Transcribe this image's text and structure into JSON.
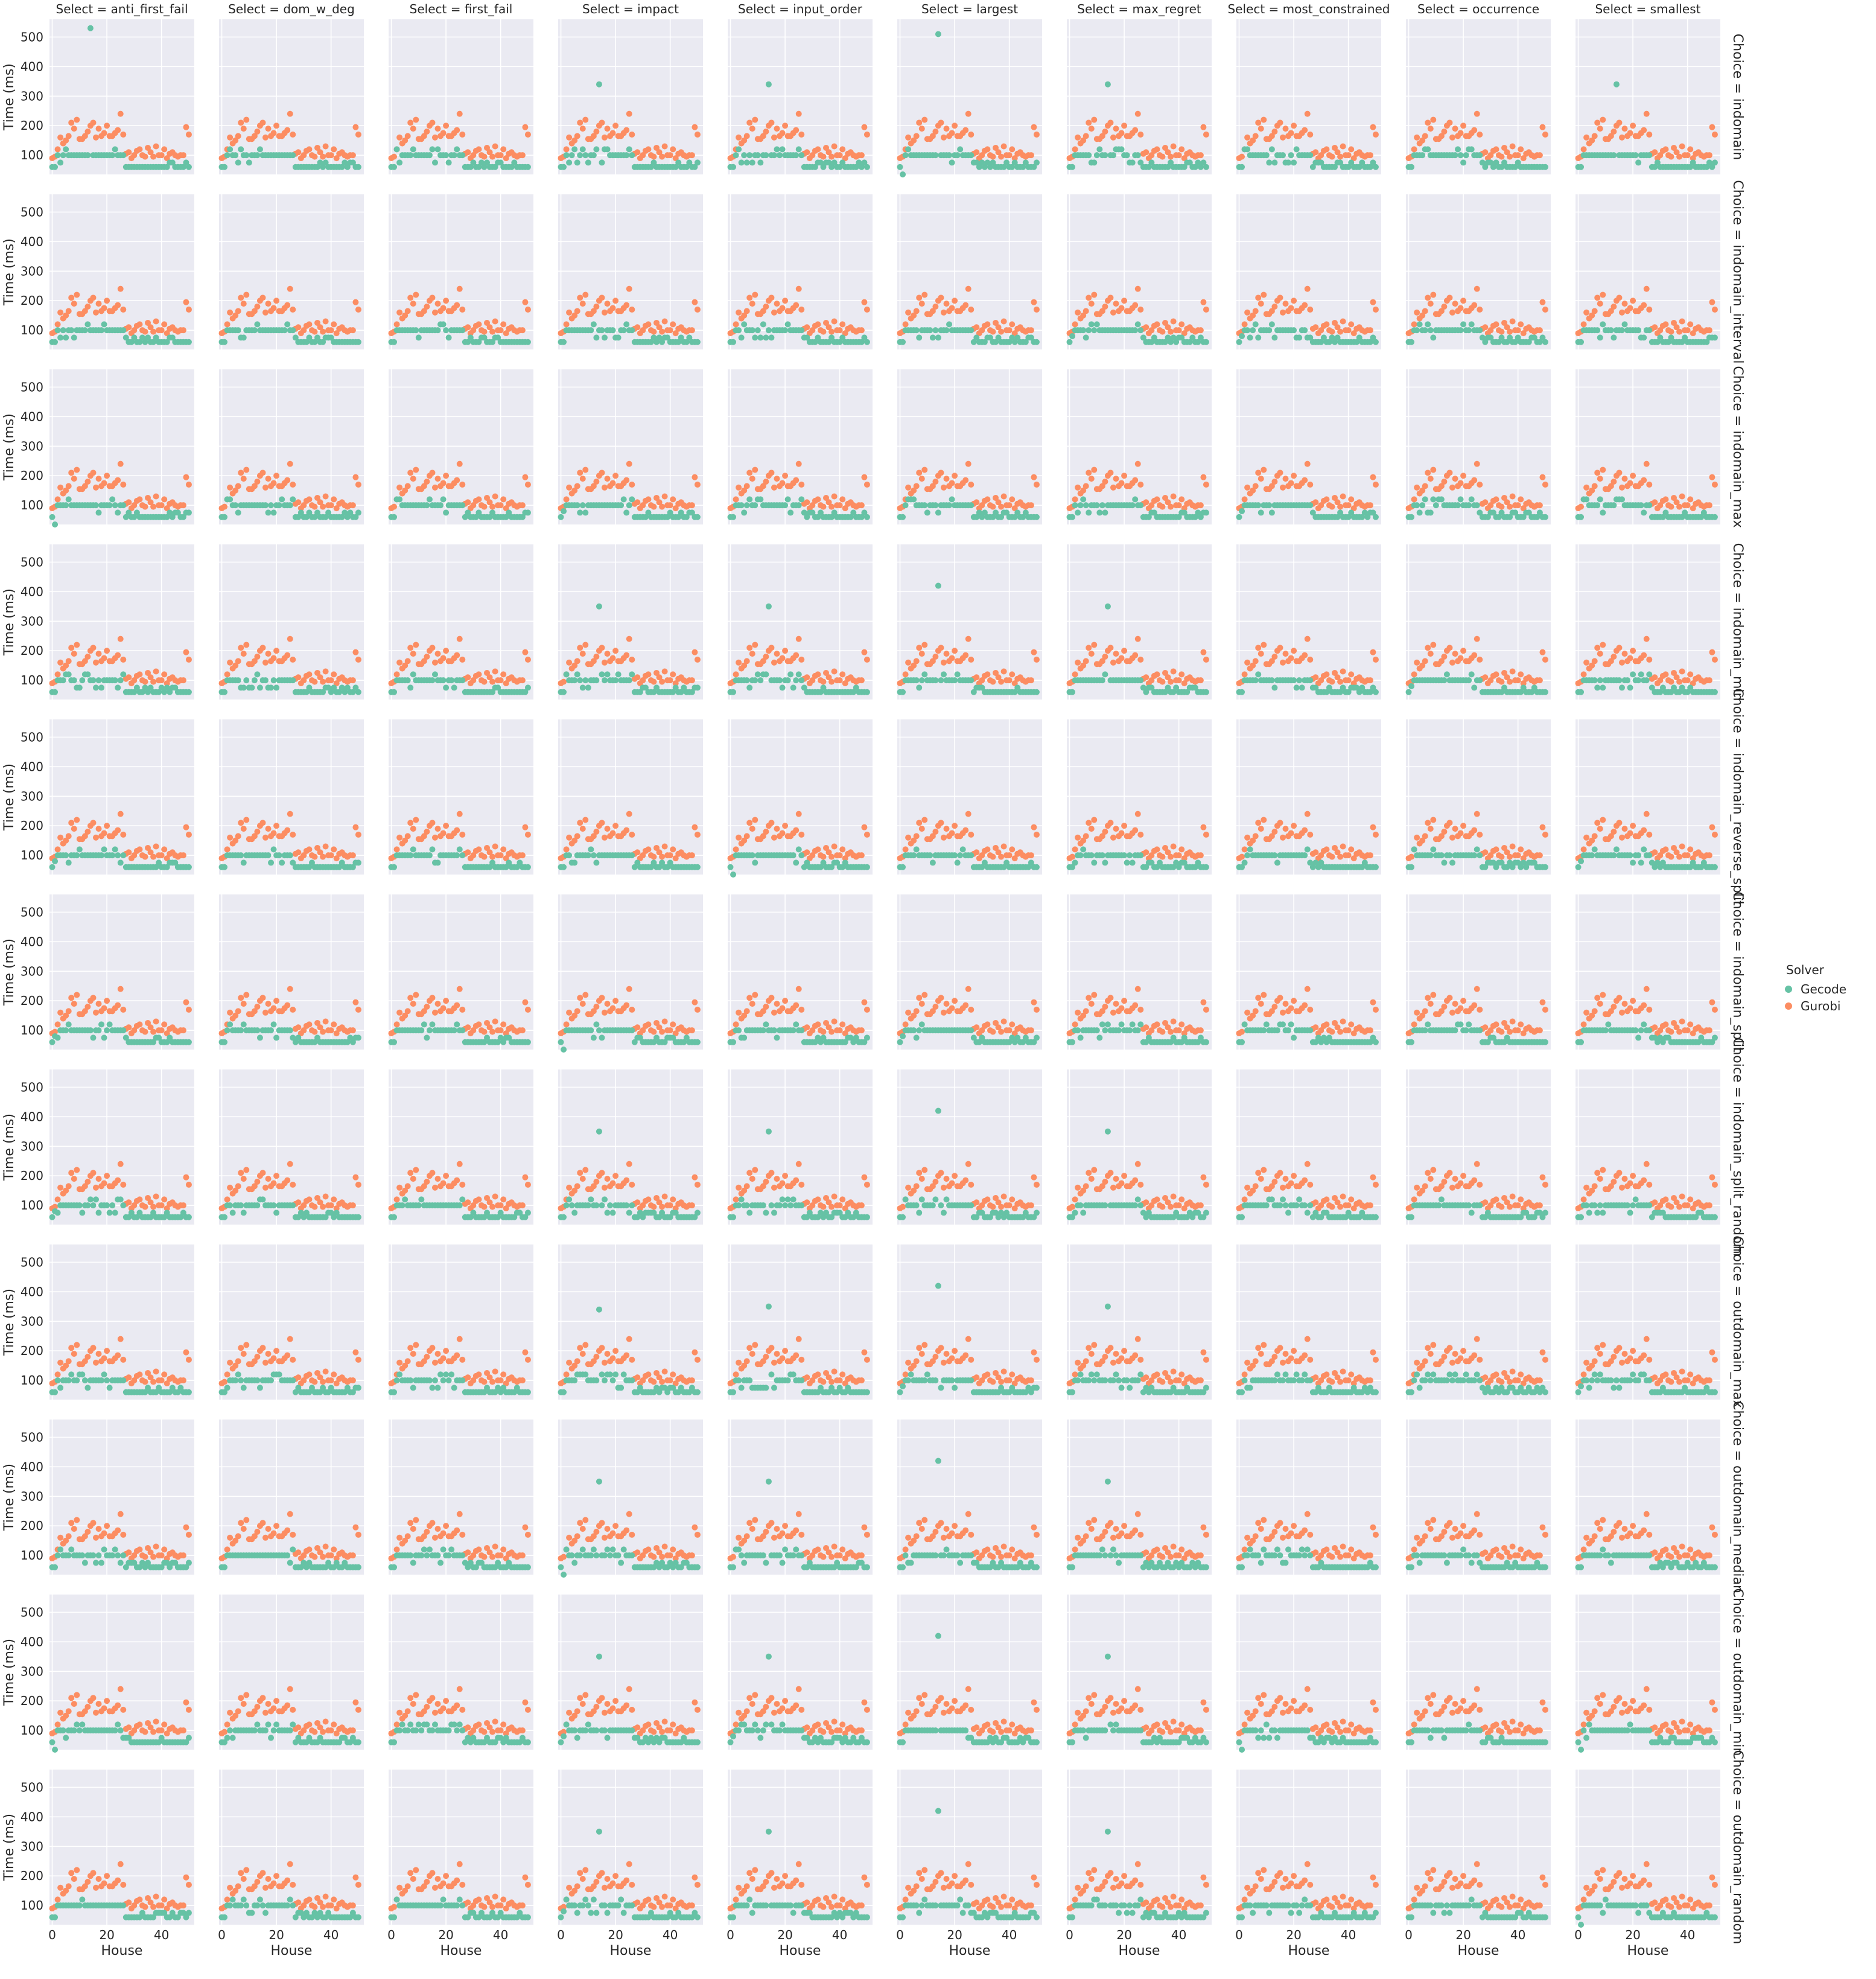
{
  "chart_data": {
    "type": "scatter",
    "facet": {
      "col_var": "Select",
      "row_var": "Choice",
      "cols": [
        "anti_first_fail",
        "dom_w_deg",
        "first_fail",
        "impact",
        "input_order",
        "largest",
        "max_regret",
        "most_constrained",
        "occurrence",
        "smallest"
      ],
      "rows": [
        "indomain",
        "indomain_interval",
        "indomain_max",
        "indomain_min",
        "indomain_reverse_split",
        "indomain_split",
        "indomain_split_random",
        "outdomain_max",
        "outdomain_median",
        "outdomain_min",
        "outdomain_random"
      ]
    },
    "xlabel": "House",
    "ylabel": "Time (ms)",
    "xlim": [
      -1,
      52
    ],
    "ylim": [
      35,
      560
    ],
    "xticks": [
      0,
      20,
      40
    ],
    "yticks": [
      100,
      200,
      300,
      400,
      500
    ],
    "grid": true,
    "background": "#eaeaf2",
    "legend": {
      "title": "Solver",
      "placement": "right",
      "entries": [
        {
          "name": "Gecode",
          "color": "#66c2a5"
        },
        {
          "name": "Gurobi",
          "color": "#fc8d62"
        }
      ]
    },
    "series_by_facet_note": "Gurobi times are identical across facets; Gecode times vary slightly with small outliers",
    "gurobi": [
      90,
      95,
      120,
      160,
      140,
      150,
      165,
      210,
      190,
      220,
      155,
      155,
      165,
      180,
      200,
      210,
      160,
      190,
      165,
      175,
      200,
      165,
      165,
      175,
      185,
      240,
      170,
      105,
      110,
      90,
      100,
      115,
      120,
      100,
      95,
      125,
      110,
      95,
      130,
      100,
      100,
      120,
      90,
      105,
      110,
      100,
      95,
      100,
      100,
      195,
      170
    ],
    "gecode_base": [
      60,
      60,
      100,
      100,
      100,
      100,
      100,
      100,
      100,
      100,
      100,
      100,
      100,
      100,
      100,
      100,
      100,
      100,
      100,
      100,
      100,
      100,
      100,
      100,
      100,
      100,
      100,
      60,
      60,
      60,
      60,
      60,
      60,
      60,
      60,
      60,
      60,
      60,
      60,
      60,
      60,
      60,
      60,
      60,
      60,
      60,
      60,
      60,
      60,
      60,
      60
    ],
    "gecode_outliers": [
      {
        "col": "anti_first_fail",
        "row": "indomain",
        "house": 14,
        "time": 530
      },
      {
        "col": "impact",
        "row": "indomain",
        "house": 14,
        "time": 340
      },
      {
        "col": "input_order",
        "row": "indomain",
        "house": 14,
        "time": 340
      },
      {
        "col": "largest",
        "row": "indomain",
        "house": 14,
        "time": 510
      },
      {
        "col": "max_regret",
        "row": "indomain",
        "house": 14,
        "time": 340
      },
      {
        "col": "smallest",
        "row": "indomain",
        "house": 14,
        "time": 340
      },
      {
        "col": "impact",
        "row": "indomain_min",
        "house": 14,
        "time": 350
      },
      {
        "col": "input_order",
        "row": "indomain_min",
        "house": 14,
        "time": 350
      },
      {
        "col": "largest",
        "row": "indomain_min",
        "house": 14,
        "time": 420
      },
      {
        "col": "max_regret",
        "row": "indomain_min",
        "house": 14,
        "time": 350
      },
      {
        "col": "impact",
        "row": "indomain_split_random",
        "house": 14,
        "time": 350
      },
      {
        "col": "input_order",
        "row": "indomain_split_random",
        "house": 14,
        "time": 350
      },
      {
        "col": "largest",
        "row": "indomain_split_random",
        "house": 14,
        "time": 420
      },
      {
        "col": "max_regret",
        "row": "indomain_split_random",
        "house": 14,
        "time": 350
      },
      {
        "col": "impact",
        "row": "outdomain_max",
        "house": 14,
        "time": 340
      },
      {
        "col": "input_order",
        "row": "outdomain_max",
        "house": 14,
        "time": 350
      },
      {
        "col": "largest",
        "row": "outdomain_max",
        "house": 14,
        "time": 420
      },
      {
        "col": "max_regret",
        "row": "outdomain_max",
        "house": 14,
        "time": 350
      },
      {
        "col": "impact",
        "row": "outdomain_median",
        "house": 14,
        "time": 350
      },
      {
        "col": "input_order",
        "row": "outdomain_median",
        "house": 14,
        "time": 350
      },
      {
        "col": "largest",
        "row": "outdomain_median",
        "house": 14,
        "time": 420
      },
      {
        "col": "max_regret",
        "row": "outdomain_median",
        "house": 14,
        "time": 350
      },
      {
        "col": "impact",
        "row": "outdomain_min",
        "house": 14,
        "time": 350
      },
      {
        "col": "input_order",
        "row": "outdomain_min",
        "house": 14,
        "time": 350
      },
      {
        "col": "largest",
        "row": "outdomain_min",
        "house": 14,
        "time": 420
      },
      {
        "col": "max_regret",
        "row": "outdomain_min",
        "house": 14,
        "time": 350
      },
      {
        "col": "impact",
        "row": "outdomain_random",
        "house": 14,
        "time": 350
      },
      {
        "col": "input_order",
        "row": "outdomain_random",
        "house": 14,
        "time": 350
      },
      {
        "col": "largest",
        "row": "outdomain_random",
        "house": 14,
        "time": 420
      },
      {
        "col": "max_regret",
        "row": "outdomain_random",
        "house": 14,
        "time": 350
      }
    ]
  }
}
